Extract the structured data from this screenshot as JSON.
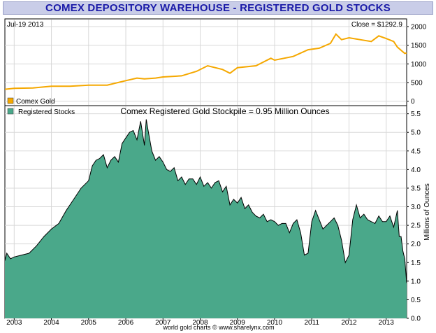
{
  "title": "COMEX DEPOSITORY WAREHOUSE - REGISTERED GOLD STOCKS",
  "footer": "world gold charts © www.sharelynx.com",
  "colors": {
    "title_text": "#1a1aa8",
    "title_bg": "#c9cde8",
    "gold_line": "#f5a800",
    "stocks_fill": "#4aa88a",
    "stocks_line": "#000000"
  },
  "chart_data": [
    {
      "type": "line",
      "name": "comex-gold-price",
      "date_label": "Jul-19  2013",
      "close_label": "Close = $1292.9",
      "legend": "Comex Gold",
      "ylim": [
        -100,
        2150
      ],
      "yticks": [
        0,
        500,
        1000,
        1500,
        2000
      ],
      "x": [
        2002.75,
        2003.0,
        2003.5,
        2004.0,
        2004.5,
        2005.0,
        2005.5,
        2006.0,
        2006.3,
        2006.5,
        2006.8,
        2007.0,
        2007.5,
        2007.9,
        2008.2,
        2008.6,
        2008.8,
        2009.0,
        2009.5,
        2009.9,
        2010.0,
        2010.5,
        2010.9,
        2011.2,
        2011.5,
        2011.65,
        2011.8,
        2012.0,
        2012.3,
        2012.6,
        2012.8,
        2013.0,
        2013.2,
        2013.3,
        2013.5,
        2013.55
      ],
      "values": [
        320,
        345,
        355,
        400,
        400,
        430,
        430,
        550,
        620,
        600,
        620,
        650,
        680,
        800,
        950,
        850,
        750,
        900,
        950,
        1150,
        1100,
        1200,
        1380,
        1420,
        1550,
        1800,
        1650,
        1700,
        1650,
        1600,
        1750,
        1680,
        1600,
        1450,
        1280,
        1293
      ]
    },
    {
      "type": "area",
      "name": "registered-gold-stocks",
      "legend": "Registered Stocks",
      "title": "Comex Registered Gold Stockpile = 0.95 Million Ounces",
      "ylabel": "Millions of Ounces",
      "xlabel": "",
      "ylim": [
        0,
        5.7
      ],
      "yticks": [
        0.0,
        0.5,
        1.0,
        1.5,
        2.0,
        2.5,
        3.0,
        3.5,
        4.0,
        4.5,
        5.0,
        5.5
      ],
      "ytick_labels": [
        "0.0",
        "0.5",
        "1.0",
        "1.5",
        "2.0",
        "2.5",
        "3.0",
        "3.5",
        "4.0",
        "4.5",
        "5.0",
        "5.5"
      ],
      "xlim": [
        2002.75,
        2013.55
      ],
      "xticks": [
        2003,
        2004,
        2005,
        2006,
        2007,
        2008,
        2009,
        2010,
        2011,
        2012,
        2013
      ],
      "xtick_labels": [
        "2003",
        "2004",
        "2005",
        "2006",
        "2007",
        "2008",
        "2009",
        "2010",
        "2011",
        "2012",
        "2013"
      ],
      "x": [
        2002.75,
        2002.8,
        2002.9,
        2003.0,
        2003.2,
        2003.4,
        2003.6,
        2003.8,
        2004.0,
        2004.2,
        2004.4,
        2004.6,
        2004.8,
        2005.0,
        2005.1,
        2005.2,
        2005.3,
        2005.4,
        2005.5,
        2005.6,
        2005.7,
        2005.8,
        2005.9,
        2006.0,
        2006.1,
        2006.2,
        2006.3,
        2006.4,
        2006.5,
        2006.55,
        2006.6,
        2006.7,
        2006.8,
        2006.9,
        2007.0,
        2007.1,
        2007.2,
        2007.3,
        2007.4,
        2007.5,
        2007.6,
        2007.7,
        2007.8,
        2007.9,
        2008.0,
        2008.1,
        2008.2,
        2008.3,
        2008.4,
        2008.5,
        2008.6,
        2008.7,
        2008.8,
        2008.9,
        2009.0,
        2009.1,
        2009.2,
        2009.3,
        2009.4,
        2009.5,
        2009.6,
        2009.7,
        2009.8,
        2009.9,
        2010.0,
        2010.1,
        2010.2,
        2010.3,
        2010.4,
        2010.5,
        2010.6,
        2010.7,
        2010.8,
        2010.9,
        2011.0,
        2011.1,
        2011.2,
        2011.3,
        2011.4,
        2011.5,
        2011.6,
        2011.7,
        2011.8,
        2011.9,
        2012.0,
        2012.1,
        2012.2,
        2012.3,
        2012.4,
        2012.5,
        2012.6,
        2012.7,
        2012.8,
        2012.9,
        2013.0,
        2013.1,
        2013.2,
        2013.3,
        2013.35,
        2013.4,
        2013.45,
        2013.5,
        2013.55
      ],
      "values": [
        1.55,
        1.75,
        1.6,
        1.65,
        1.7,
        1.75,
        1.95,
        2.2,
        2.4,
        2.55,
        2.9,
        3.2,
        3.5,
        3.7,
        4.1,
        4.25,
        4.3,
        4.4,
        4.05,
        4.25,
        4.35,
        4.2,
        4.7,
        4.85,
        5.0,
        5.05,
        4.8,
        5.3,
        4.65,
        5.35,
        5.05,
        4.5,
        4.25,
        4.35,
        4.2,
        4.0,
        3.95,
        4.05,
        3.7,
        3.8,
        3.6,
        3.75,
        3.75,
        3.6,
        3.8,
        3.55,
        3.65,
        3.5,
        3.65,
        3.7,
        3.4,
        3.55,
        3.05,
        3.2,
        3.1,
        3.25,
        2.95,
        3.05,
        2.85,
        2.75,
        2.7,
        2.8,
        2.6,
        2.65,
        2.6,
        2.5,
        2.55,
        2.55,
        2.3,
        2.55,
        2.65,
        2.3,
        1.7,
        1.75,
        2.6,
        2.9,
        2.65,
        2.4,
        2.5,
        2.6,
        2.7,
        2.5,
        2.1,
        1.5,
        1.7,
        2.65,
        3.05,
        2.7,
        2.8,
        2.65,
        2.6,
        2.55,
        2.75,
        2.6,
        2.6,
        2.75,
        2.45,
        2.9,
        2.2,
        2.2,
        1.8,
        1.6,
        0.95
      ]
    }
  ]
}
